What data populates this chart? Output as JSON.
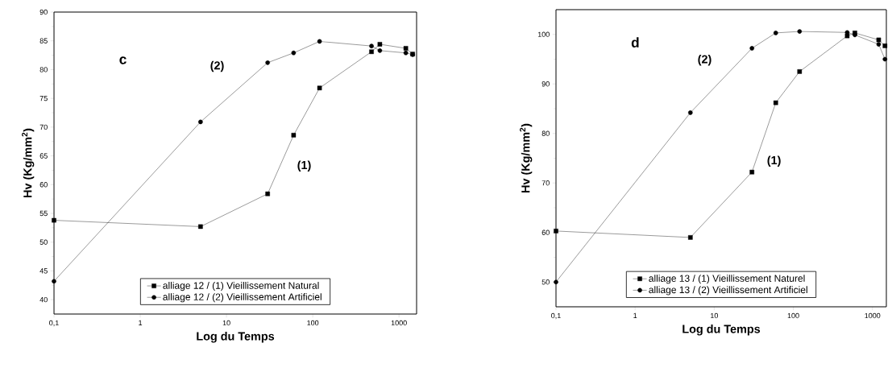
{
  "chart_data": [
    {
      "type": "line",
      "xlabel": "Log du Temps",
      "ylabel": "Hv (Kg/mm$^{2}$)",
      "log": "x",
      "legend": "bottom",
      "line_style": "solid",
      "xlim": [
        0.1,
        1600
      ],
      "ylim": [
        37.5,
        90
      ],
      "xticks": [
        {
          "value": 0.1,
          "label": "0,1"
        },
        1,
        10,
        100,
        1000
      ],
      "yticks": [
        40,
        45,
        50,
        55,
        60,
        65,
        70,
        75,
        80,
        85,
        90
      ],
      "annotations": [
        "c",
        "(2)",
        "(1)"
      ],
      "series": [
        {
          "name": "alliage 12 /  (1)  Vieillissement Natural",
          "color": "#000000",
          "marker": "square",
          "x": [
            0.1,
            5,
            30,
            60,
            120,
            480,
            600,
            1200,
            1440
          ],
          "values": [
            53.8,
            52.7,
            58.4,
            68.6,
            76.8,
            83.1,
            84.4,
            83.7,
            82.7
          ]
        },
        {
          "name": "alliage 12 /  (2)  Vieillissement Artificiel",
          "color": "#000000",
          "marker": "circle",
          "x": [
            0.1,
            5,
            30,
            60,
            120,
            480,
            600,
            1200,
            1440
          ],
          "values": [
            43.2,
            70.9,
            81.2,
            82.9,
            84.9,
            84.1,
            83.3,
            82.9,
            82.6
          ]
        }
      ]
    },
    {
      "type": "line",
      "xlabel": "Log du Temps",
      "ylabel": "Hv (Kg/mm$^{2}$)",
      "log": "x",
      "legend": "bottom",
      "line_style": "solid",
      "xlim": [
        0.1,
        1500
      ],
      "ylim": [
        45,
        105
      ],
      "xticks": [
        {
          "value": 0.1,
          "label": "0,1"
        },
        1,
        10,
        100,
        1000
      ],
      "yticks": [
        50,
        60,
        70,
        80,
        90,
        100
      ],
      "annotations": [
        "d",
        "(2)",
        "(1)"
      ],
      "series": [
        {
          "name": "alliage 13 / (1) Vieillissement Naturel",
          "color": "#000000",
          "marker": "square",
          "x": [
            0.1,
            5,
            30,
            60,
            120,
            480,
            600,
            1200,
            1440
          ],
          "values": [
            60.3,
            59.0,
            72.2,
            86.2,
            92.5,
            99.7,
            100.3,
            98.9,
            97.7
          ]
        },
        {
          "name": "alliage 13 / (2) Vieillissement Artificiel",
          "color": "#000000",
          "marker": "circle",
          "x": [
            0.1,
            5,
            30,
            60,
            120,
            480,
            600,
            1200,
            1440
          ],
          "values": [
            50.0,
            84.2,
            97.2,
            100.3,
            100.6,
            100.4,
            99.9,
            98.0,
            95.0
          ]
        }
      ]
    }
  ]
}
